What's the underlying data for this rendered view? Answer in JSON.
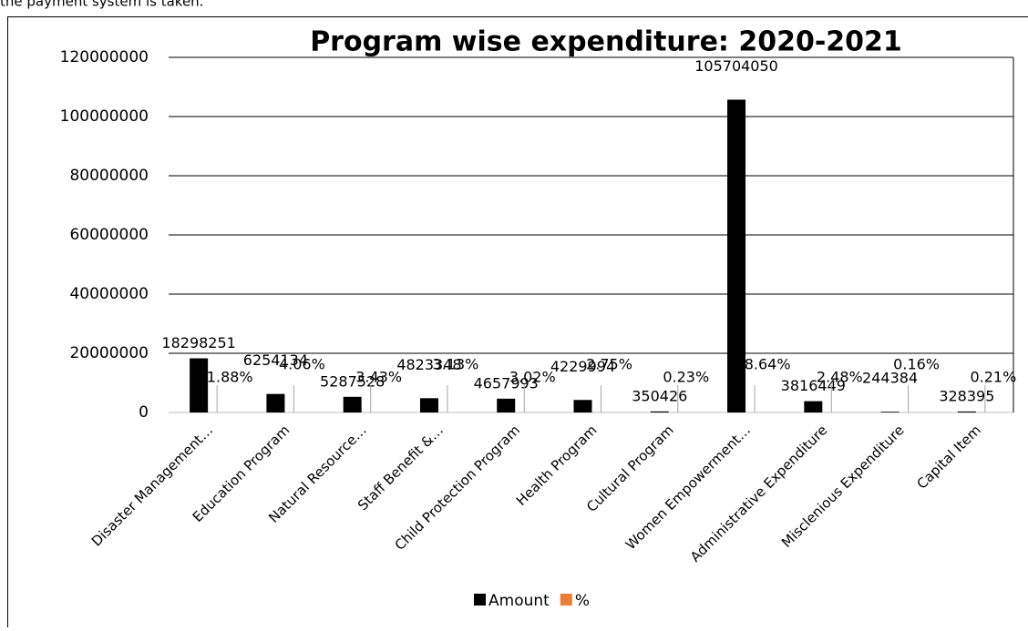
{
  "page_text": "the payment system is taken.",
  "chart_data": {
    "type": "bar",
    "title": "Program wise expenditure: 2020-2021",
    "categories": [
      "Disaster Management…",
      "Education Program",
      "Natural Resource…",
      "Staff Benefit &…",
      "Child Protection Program",
      "Health Program",
      "Cultural Program",
      "Women Empowerment…",
      "Administrative Expenditure",
      "Misclenious Expenditure",
      "Capital Item"
    ],
    "series": [
      {
        "name": "Amount",
        "color": "#000000",
        "values": [
          18298251,
          6254134,
          5287528,
          4823348,
          4657993,
          4229994,
          350426,
          105704050,
          3816449,
          244384,
          328395
        ]
      },
      {
        "name": "%",
        "color": "#ed7d31",
        "values": [
          11.88,
          4.06,
          3.43,
          3.13,
          3.02,
          2.75,
          0.23,
          68.64,
          2.48,
          0.16,
          0.21
        ],
        "value_labels": [
          "11.88%",
          "4.06%",
          "3.43%",
          "3.13%",
          "3.02%",
          "2.75%",
          "0.23%",
          "68.64%",
          "2.48%",
          "0.16%",
          "0.21%"
        ]
      }
    ],
    "ylim": [
      0,
      120000000
    ],
    "yticks": [
      0,
      20000000,
      40000000,
      60000000,
      80000000,
      100000000,
      120000000
    ],
    "grid": true,
    "legend": "bottom"
  }
}
